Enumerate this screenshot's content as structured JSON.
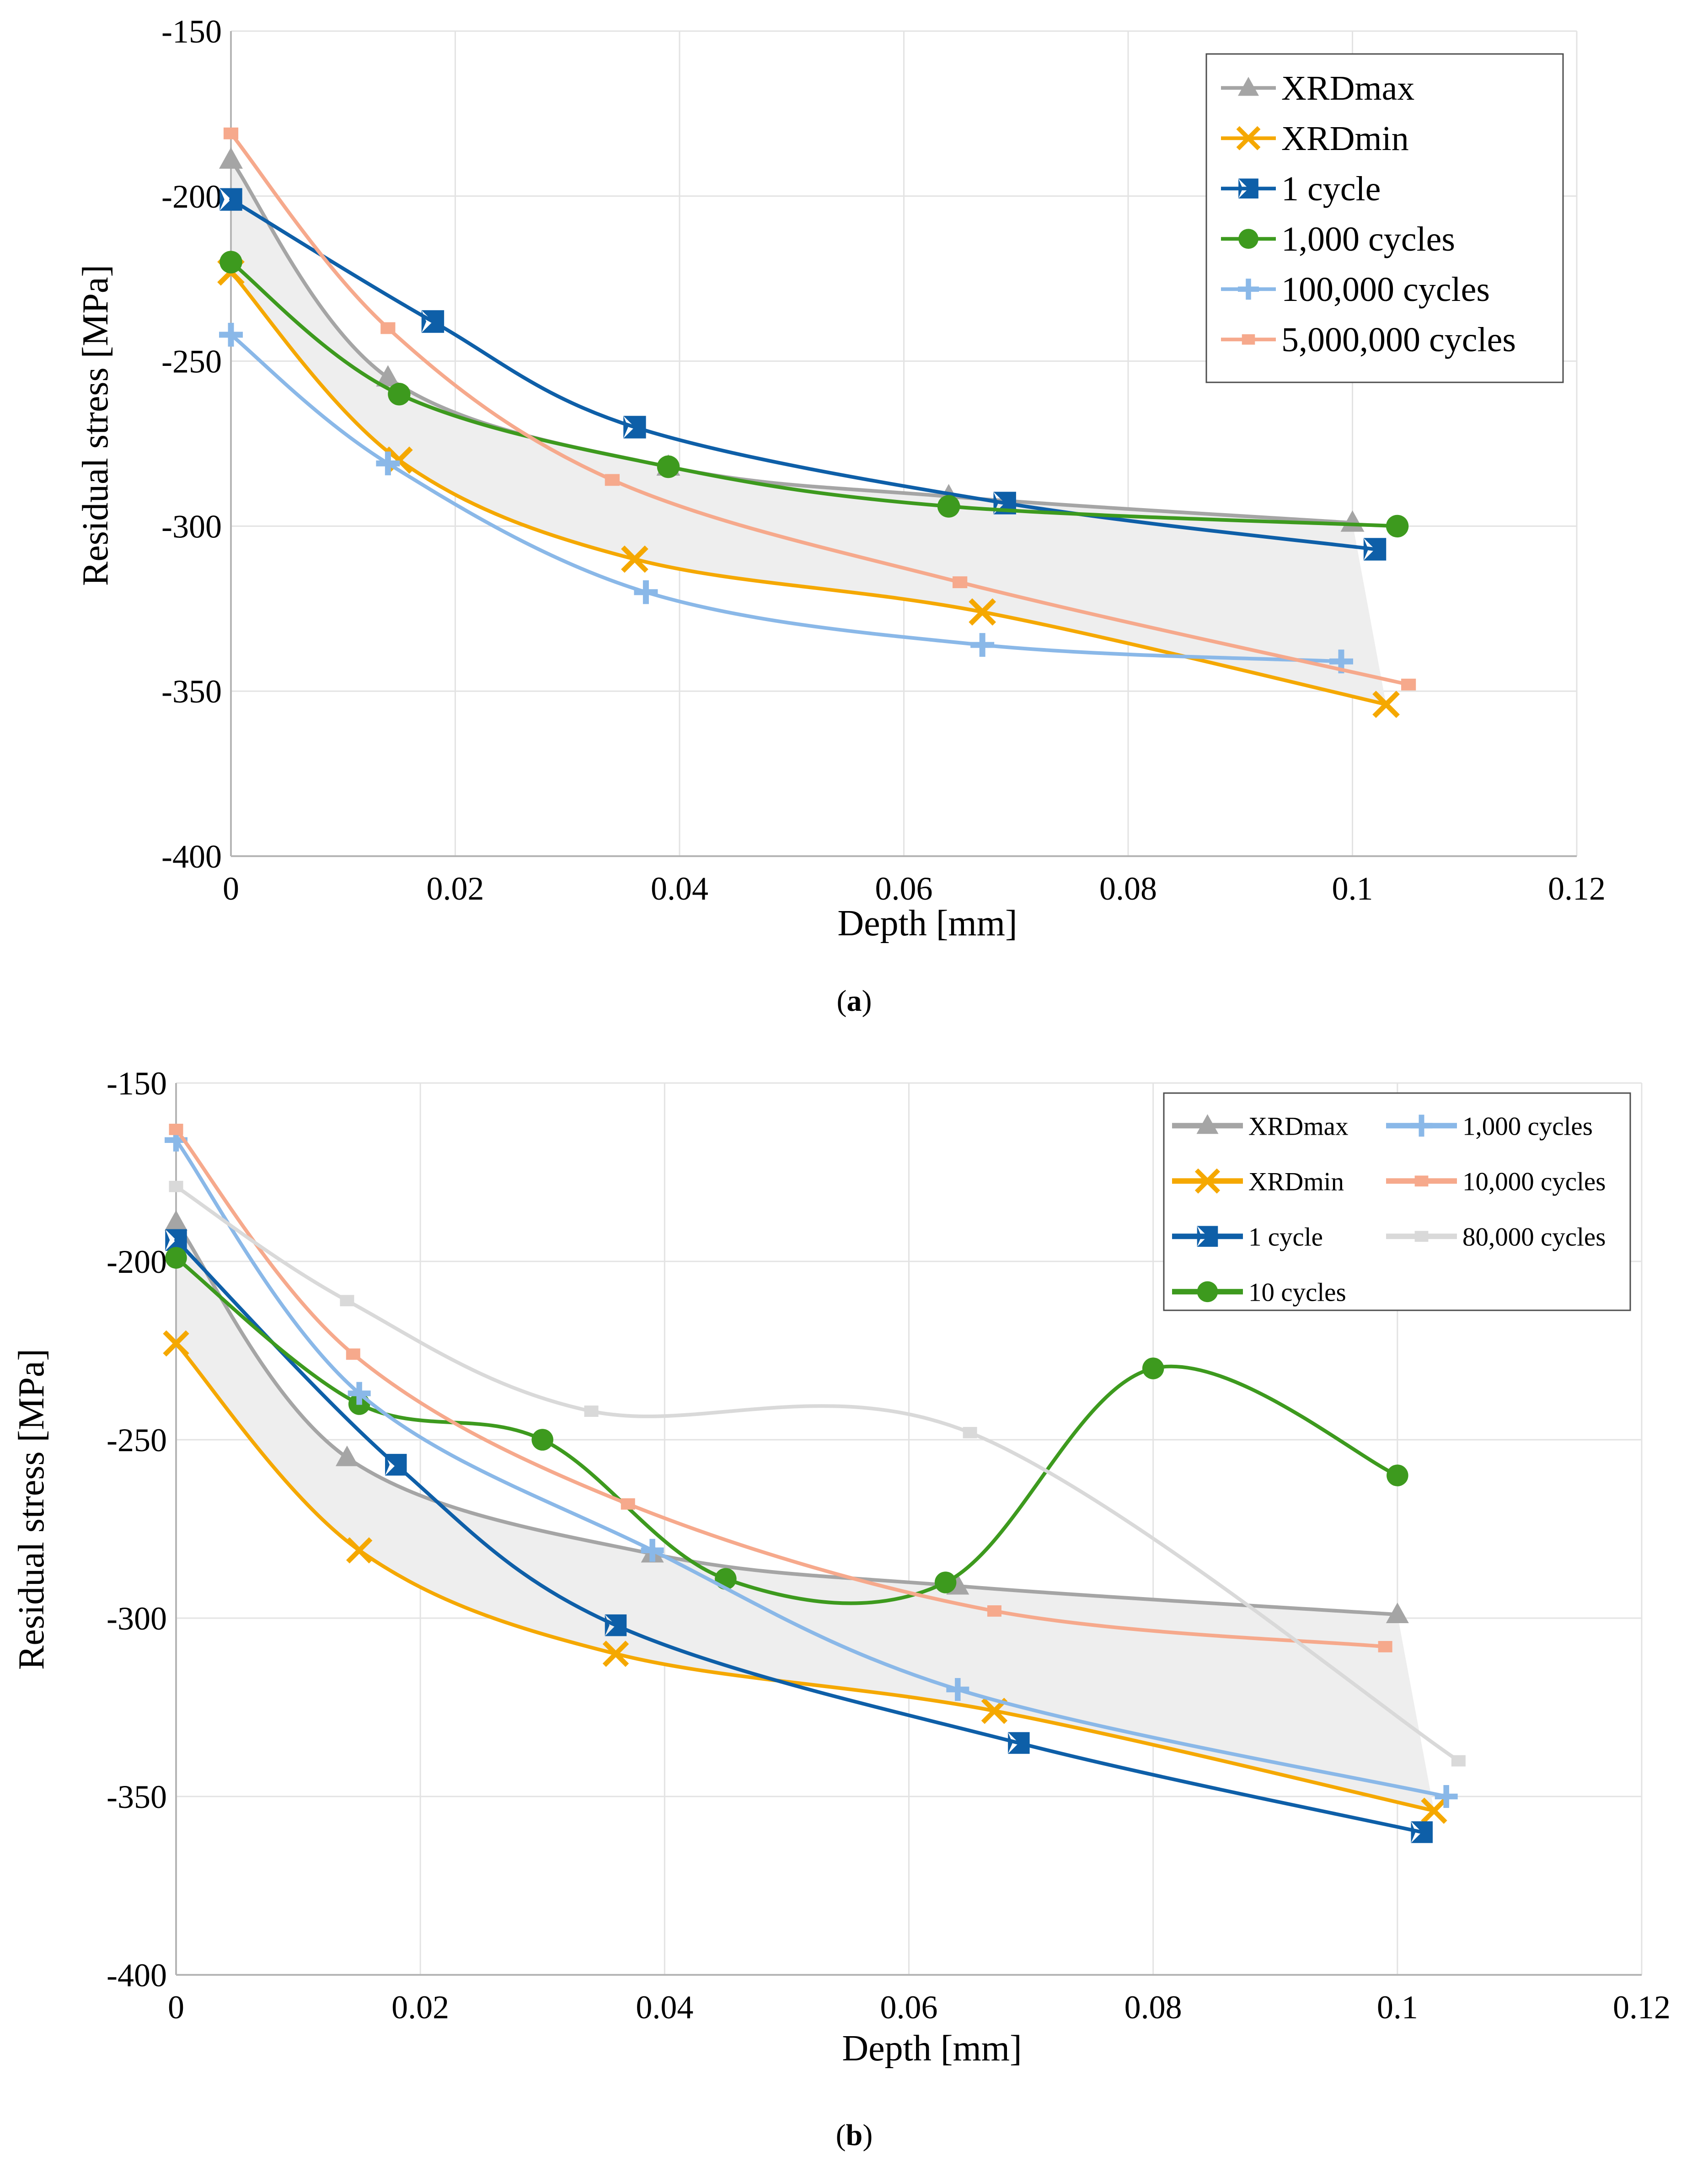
{
  "colors": {
    "XRDmax": "#a5a5a5",
    "XRDmin": "#f5a800",
    "cycle1": "#0e5fa8",
    "green": "#3d9a1e",
    "lightblue": "#8ab8e8",
    "salmon": "#f6a98c",
    "lightgray": "#d9d9d9",
    "band": "#eeeeee",
    "grid": "#e3e3e3"
  },
  "chart_data": [
    {
      "panel": "a",
      "type": "line",
      "caption_prefix": "(",
      "caption_letter": "a",
      "caption_suffix": ")",
      "xlabel": "Depth [mm]",
      "ylabel": "Residual stress [MPa]",
      "xlim": [
        0,
        0.12
      ],
      "ylim": [
        -400,
        -150
      ],
      "xticks": [
        0,
        0.02,
        0.04,
        0.06,
        0.08,
        0.1,
        0.12
      ],
      "xtick_labels": [
        "0",
        "0.02",
        "0.04",
        "0.06",
        "0.08",
        "0.1",
        "0.12"
      ],
      "yticks": [
        -400,
        -350,
        -300,
        -250,
        -200,
        -150
      ],
      "ytick_labels": [
        "-400",
        "-350",
        "-300",
        "-250",
        "-200",
        "-150"
      ],
      "legend_position": "top-right",
      "band": {
        "upper": "XRDmax",
        "lower": "XRDmin"
      },
      "series": [
        {
          "name": "XRDmax",
          "color_key": "XRDmax",
          "marker": "triangle",
          "x": [
            0,
            0.014,
            0.039,
            0.064,
            0.1
          ],
          "y": [
            -189,
            -255,
            -282,
            -291,
            -299
          ]
        },
        {
          "name": "XRDmin",
          "color_key": "XRDmin",
          "marker": "x",
          "x": [
            0,
            0.015,
            0.036,
            0.067,
            0.103
          ],
          "y": [
            -223,
            -280,
            -310,
            -326,
            -354
          ]
        },
        {
          "name": "1 cycle",
          "color_key": "cycle1",
          "marker": "bowtie",
          "x": [
            0,
            0.018,
            0.036,
            0.069,
            0.102
          ],
          "y": [
            -201,
            -238,
            -270,
            -293,
            -307
          ]
        },
        {
          "name": "1,000 cycles",
          "color_key": "green",
          "marker": "circle",
          "x": [
            0,
            0.015,
            0.039,
            0.064,
            0.104
          ],
          "y": [
            -220,
            -260,
            -282,
            -294,
            -300
          ]
        },
        {
          "name": "100,000 cycles",
          "color_key": "lightblue",
          "marker": "plus",
          "x": [
            0,
            0.014,
            0.037,
            0.067,
            0.099
          ],
          "y": [
            -242,
            -281,
            -320,
            -336,
            -341
          ]
        },
        {
          "name": "5,000,000 cycles",
          "color_key": "salmon",
          "marker": "square",
          "x": [
            0,
            0.014,
            0.034,
            0.065,
            0.105
          ],
          "y": [
            -181,
            -240,
            -286,
            -317,
            -348
          ]
        }
      ]
    },
    {
      "panel": "b",
      "type": "line",
      "caption_prefix": "(",
      "caption_letter": "b",
      "caption_suffix": ")",
      "xlabel": "Depth [mm]",
      "ylabel": "Residual stress [MPa]",
      "xlim": [
        0,
        0.12
      ],
      "ylim": [
        -400,
        -150
      ],
      "xticks": [
        0,
        0.02,
        0.04,
        0.06,
        0.08,
        0.1,
        0.12
      ],
      "xtick_labels": [
        "0",
        "0.02",
        "0.04",
        "0.06",
        "0.08",
        "0.1",
        "0.12"
      ],
      "yticks": [
        -400,
        -350,
        -300,
        -250,
        -200,
        -150
      ],
      "ytick_labels": [
        "-400",
        "-350",
        "-300",
        "-250",
        "-200",
        "-150"
      ],
      "legend_position": "top-right",
      "band": {
        "upper": "XRDmax",
        "lower": "XRDmin"
      },
      "series": [
        {
          "name": "XRDmax",
          "color_key": "XRDmax",
          "marker": "triangle",
          "x": [
            0,
            0.014,
            0.039,
            0.064,
            0.1
          ],
          "y": [
            -189,
            -255,
            -282,
            -291,
            -299
          ]
        },
        {
          "name": "XRDmin",
          "color_key": "XRDmin",
          "marker": "x",
          "x": [
            0,
            0.015,
            0.036,
            0.067,
            0.103
          ],
          "y": [
            -223,
            -281,
            -310,
            -326,
            -354
          ]
        },
        {
          "name": "1 cycle",
          "color_key": "cycle1",
          "marker": "bowtie",
          "x": [
            0,
            0.018,
            0.036,
            0.069,
            0.102
          ],
          "y": [
            -194,
            -257,
            -302,
            -335,
            -360
          ]
        },
        {
          "name": "10 cycles",
          "color_key": "green",
          "marker": "circle",
          "x": [
            0,
            0.015,
            0.03,
            0.045,
            0.063,
            0.08,
            0.1
          ],
          "y": [
            -199,
            -240,
            -250,
            -289,
            -290,
            -230,
            -260
          ]
        },
        {
          "name": "1,000 cycles",
          "color_key": "lightblue",
          "marker": "plus",
          "x": [
            0,
            0.015,
            0.039,
            0.064,
            0.104
          ],
          "y": [
            -166,
            -237,
            -281,
            -320,
            -350
          ]
        },
        {
          "name": "10,000 cycles",
          "color_key": "salmon",
          "marker": "square",
          "x": [
            0,
            0.0145,
            0.037,
            0.067,
            0.099
          ],
          "y": [
            -163,
            -226,
            -268,
            -298,
            -308
          ]
        },
        {
          "name": "80,000 cycles",
          "color_key": "lightgray",
          "marker": "square",
          "x": [
            0,
            0.014,
            0.034,
            0.065,
            0.105
          ],
          "y": [
            -179,
            -211,
            -242,
            -248,
            -340
          ]
        }
      ]
    }
  ]
}
